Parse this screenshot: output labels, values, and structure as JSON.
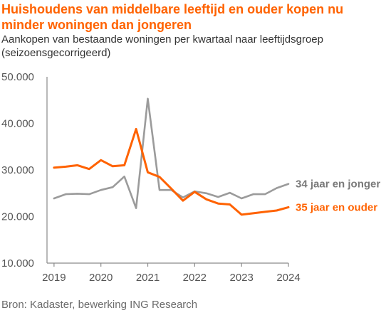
{
  "title": "Huishoudens van middelbare leeftijd en ouder kopen nu minder woningen dan jongeren",
  "subtitle": "Aankopen van bestaande woningen per kwartaal naar leeftijdsgroep (seizoensgecorrigeerd)",
  "source": "Bron: Kadaster, bewerking ING Research",
  "colors": {
    "accent": "#ff6200",
    "grey": "#9b9b9b"
  },
  "chart_data": {
    "type": "line",
    "x": [
      2019.0,
      2019.25,
      2019.5,
      2019.75,
      2020.0,
      2020.25,
      2020.5,
      2020.75,
      2021.0,
      2021.25,
      2021.5,
      2021.75,
      2022.0,
      2022.25,
      2022.5,
      2022.75,
      2023.0,
      2023.25,
      2023.5,
      2023.75,
      2024.0
    ],
    "x_ticks": [
      2019,
      2020,
      2021,
      2022,
      2023,
      2024
    ],
    "x_tick_labels": [
      "2019",
      "2020",
      "2021",
      "2022",
      "2023",
      "2024"
    ],
    "ylim": [
      10000,
      50000
    ],
    "y_ticks": [
      10000,
      20000,
      30000,
      40000,
      50000
    ],
    "y_tick_labels": [
      "10.000",
      "20.000",
      "30.000",
      "40.000",
      "50.000"
    ],
    "xlim": [
      2018.85,
      2024.0
    ],
    "series": [
      {
        "name": "34 jaar en jonger",
        "color": "#9b9b9b",
        "values": [
          23900,
          24800,
          24900,
          24800,
          25700,
          26300,
          28600,
          21800,
          45300,
          25700,
          25700,
          24100,
          25400,
          25000,
          24200,
          25100,
          23900,
          24800,
          24800,
          26100,
          27000
        ]
      },
      {
        "name": "35 jaar en ouder",
        "color": "#ff6200",
        "values": [
          30500,
          30700,
          31000,
          30200,
          32100,
          30800,
          31000,
          38800,
          29500,
          28500,
          26000,
          23400,
          25300,
          23700,
          22800,
          22600,
          20400,
          20700,
          21000,
          21300,
          22000
        ]
      }
    ]
  }
}
